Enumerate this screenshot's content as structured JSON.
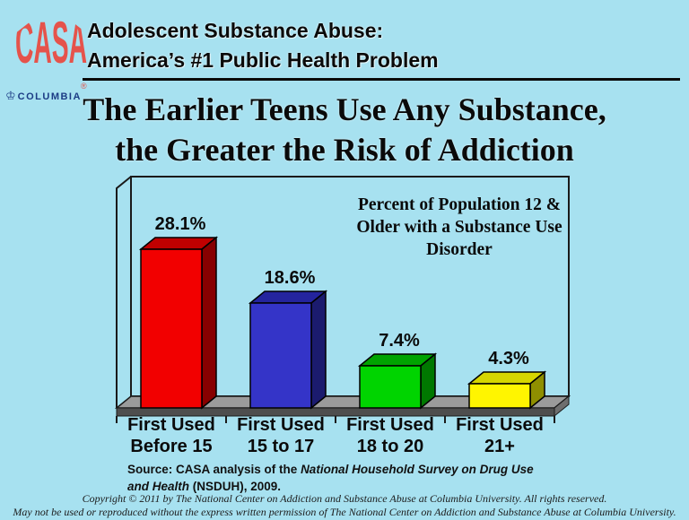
{
  "page": {
    "background_color": "#A7E1F0"
  },
  "logo": {
    "casa_text": "CASA",
    "registered_mark": "®",
    "casa_color": "#E5534B",
    "crown_icon": "♔",
    "columbia_text": "COLUMBIA",
    "columbia_color": "#1C3C85"
  },
  "header": {
    "line1": "Adolescent Substance Abuse:",
    "line2": "America’s #1 Public Health Problem"
  },
  "title": {
    "line1": "The Earlier Teens Use Any Substance,",
    "line2": "the Greater the Risk of Addiction"
  },
  "chart_data": {
    "type": "bar",
    "style": "3d-column",
    "title": "Percent of Population 12 & Older with a Substance Use Disorder",
    "annotation_lines": [
      "Percent of Population 12 &",
      "Older with a Substance Use",
      "Disorder"
    ],
    "categories": [
      "First Used Before 15",
      "First Used 15 to 17",
      "First Used 18 to 20",
      "First Used 21+"
    ],
    "category_lines": [
      [
        "First Used",
        "Before 15"
      ],
      [
        "First Used",
        "15 to 17"
      ],
      [
        "First Used",
        "18 to 20"
      ],
      [
        "First Used",
        "21+"
      ]
    ],
    "values": [
      28.1,
      18.6,
      7.4,
      4.3
    ],
    "value_labels": [
      "28.1%",
      "18.6%",
      "7.4%",
      "4.3%"
    ],
    "ylim": [
      0,
      30
    ],
    "grid": false,
    "legend": false,
    "bar_colors": [
      {
        "front": "#F20000",
        "top": "#C00000",
        "side": "#870000"
      },
      {
        "front": "#3434C8",
        "top": "#24249E",
        "side": "#1B1B6E"
      },
      {
        "front": "#00D400",
        "top": "#00A300",
        "side": "#007800"
      },
      {
        "front": "#FFF500",
        "top": "#D6D600",
        "side": "#8F8F00"
      }
    ],
    "floor_top_color": "#9B9B9B",
    "floor_front_color": "#4E4E4E",
    "floor_side_color": "#6E6E6E",
    "frame_line_color": "#1a1a1a",
    "label_color": "#0a0a0a"
  },
  "source": {
    "line1_prefix": "Source: CASA analysis of the ",
    "line1_italic": "National Household Survey on Drug Use",
    "line2_italic": "and Health",
    "line2_suffix": " (NSDUH), 2009."
  },
  "copyright": {
    "line1": "Copyright © 2011 by The National Center on Addiction and Substance Abuse at Columbia University. All rights reserved.",
    "line2": "May not be used or reproduced without the express written permission of The National Center on Addiction and Substance Abuse at Columbia University."
  }
}
